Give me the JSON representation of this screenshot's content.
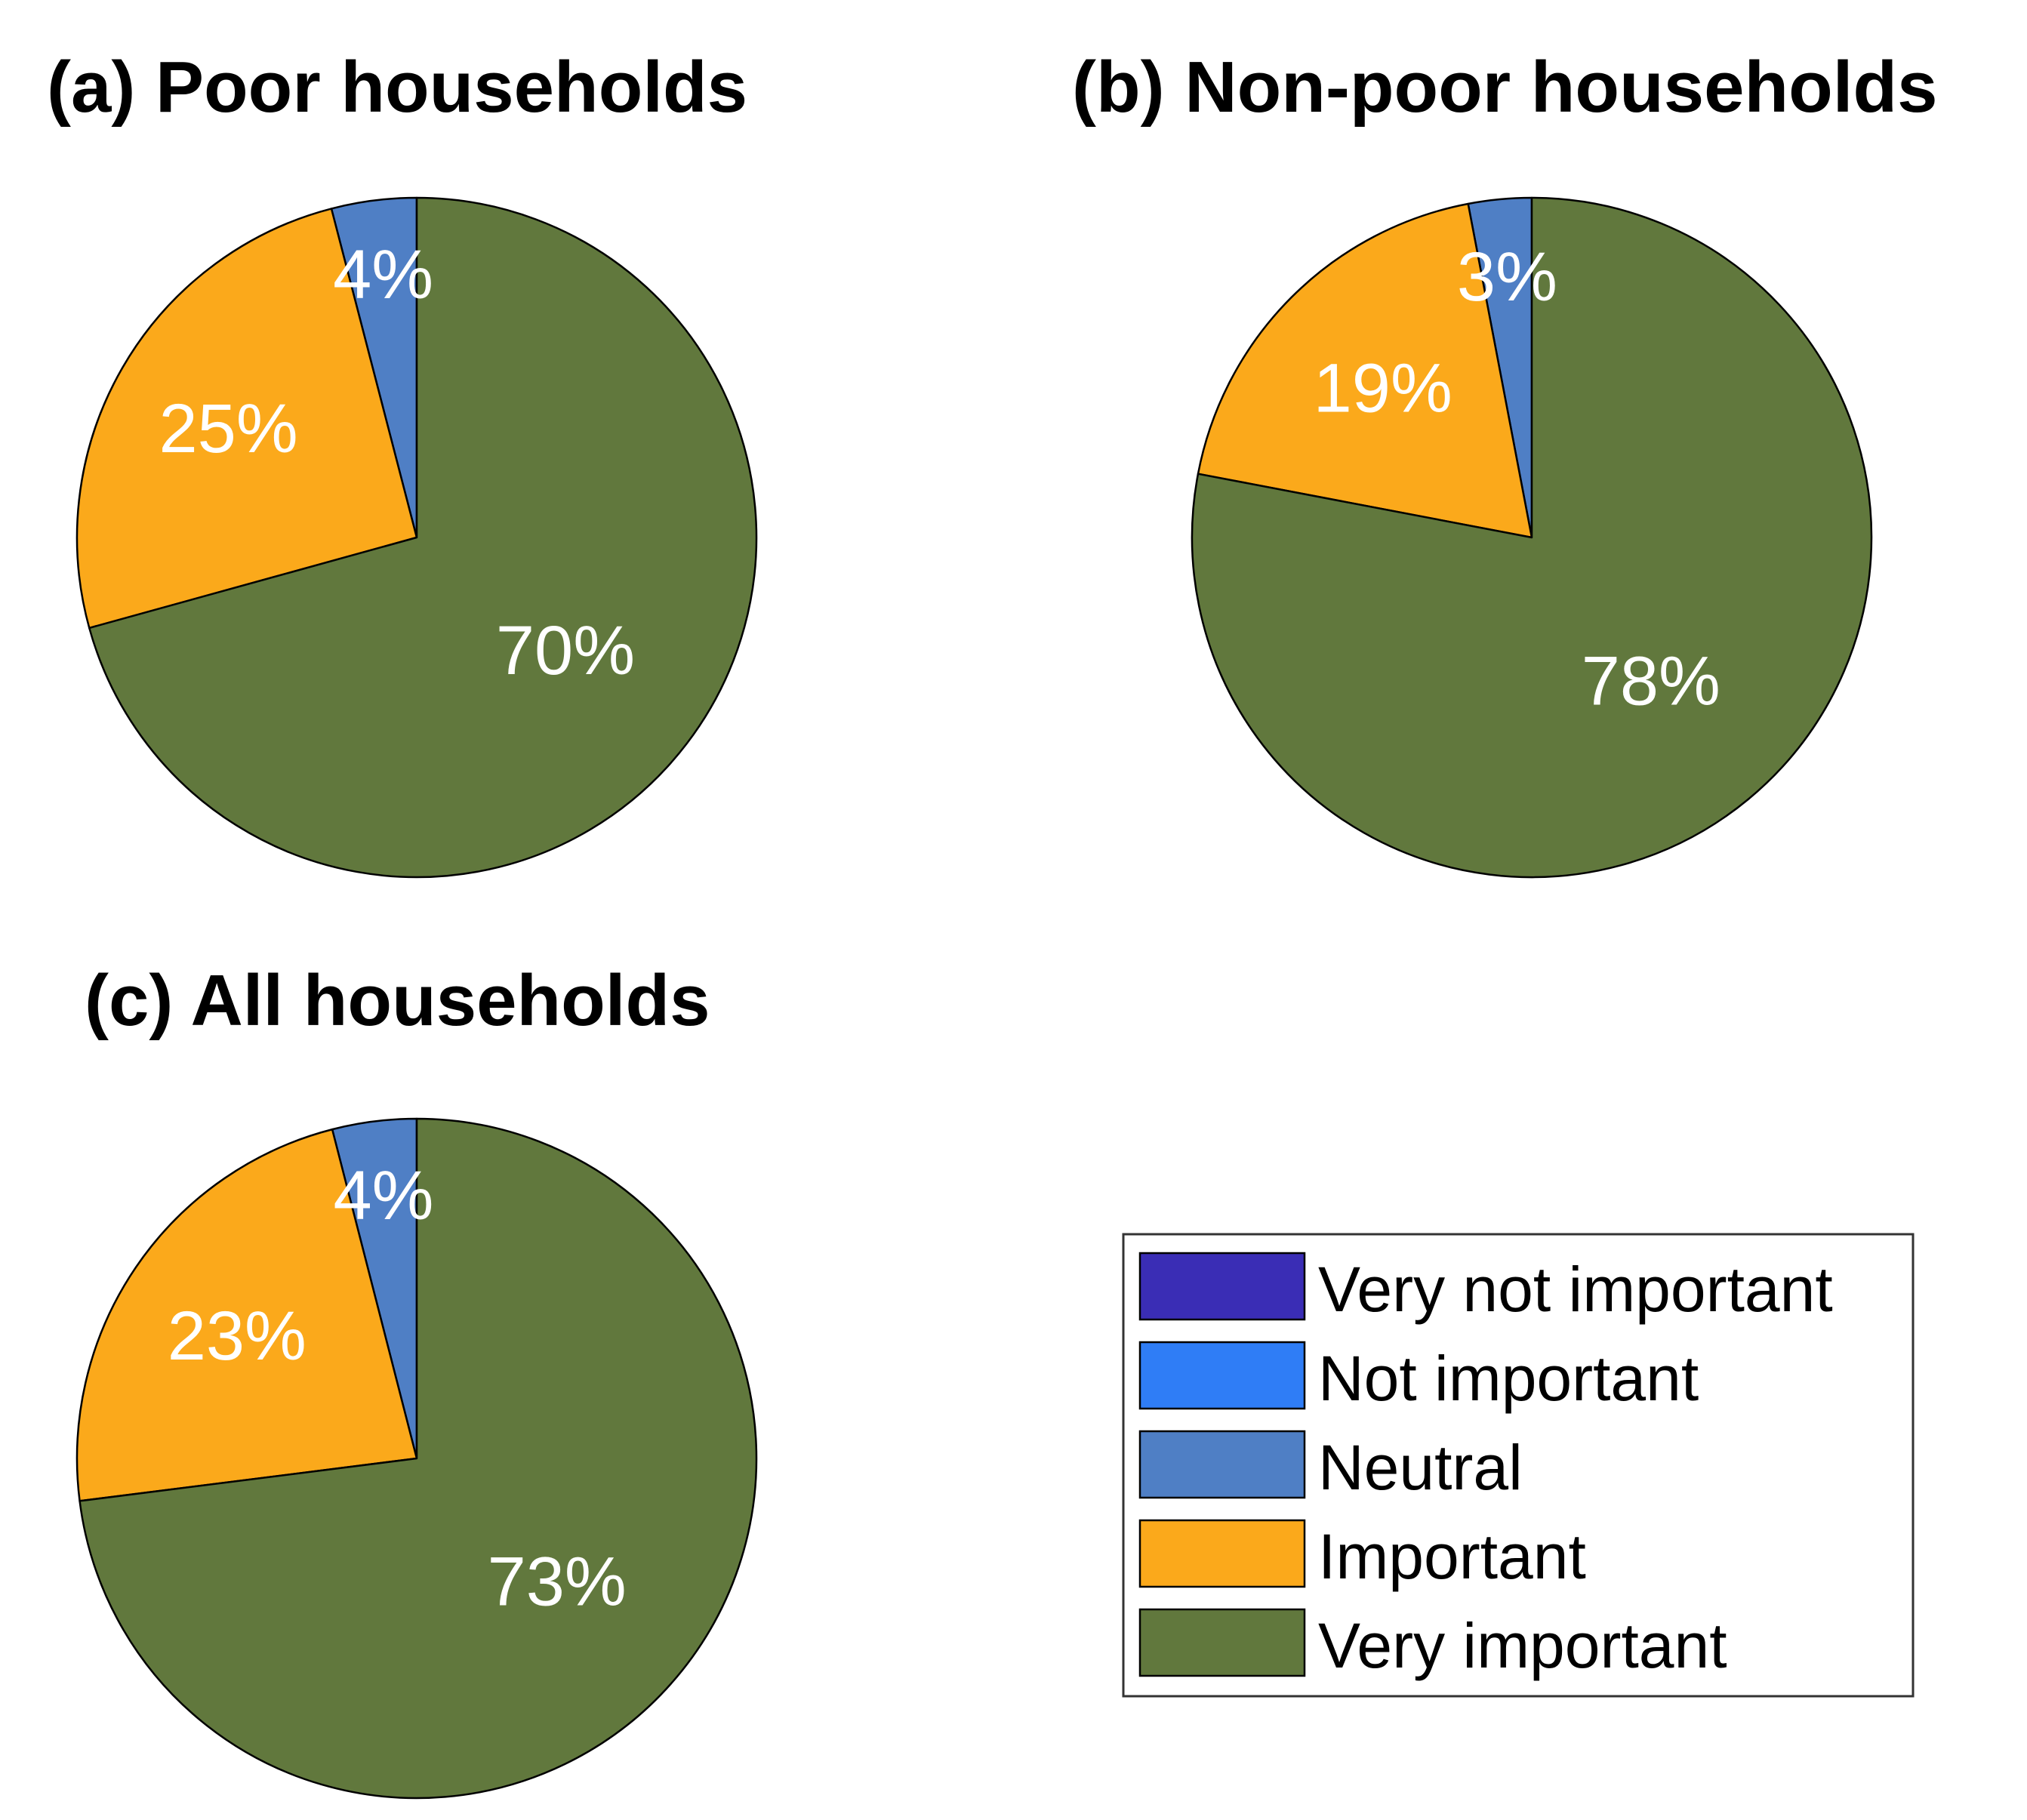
{
  "chart_data": [
    {
      "type": "pie",
      "title": "(a) Poor households",
      "categories": [
        "Very not important",
        "Not important",
        "Neutral",
        "Important",
        "Very important"
      ],
      "values": [
        0,
        0,
        4,
        25,
        70
      ],
      "labels": [
        "",
        "",
        "4%",
        "25%",
        "70%"
      ]
    },
    {
      "type": "pie",
      "title": "(b) Non-poor households",
      "categories": [
        "Very not important",
        "Not important",
        "Neutral",
        "Important",
        "Very important"
      ],
      "values": [
        0,
        0,
        3,
        19,
        78
      ],
      "labels": [
        "",
        "",
        "3%",
        "19%",
        "78%"
      ]
    },
    {
      "type": "pie",
      "title": "(c) All households",
      "categories": [
        "Very not important",
        "Not important",
        "Neutral",
        "Important",
        "Very important"
      ],
      "values": [
        0,
        0,
        4,
        23,
        73
      ],
      "labels": [
        "",
        "",
        "4%",
        "23%",
        "73%"
      ]
    }
  ],
  "legend": {
    "placement": "bottom-right",
    "items": [
      {
        "label": "Very not important",
        "color": "#3a2db5"
      },
      {
        "label": "Not important",
        "color": "#2f7df6"
      },
      {
        "label": "Neutral",
        "color": "#4f7fc5"
      },
      {
        "label": "Important",
        "color": "#fba91b"
      },
      {
        "label": "Very important",
        "color": "#61783d"
      }
    ]
  },
  "colors": {
    "label_text": "#ffffff",
    "outline": "#000000"
  }
}
